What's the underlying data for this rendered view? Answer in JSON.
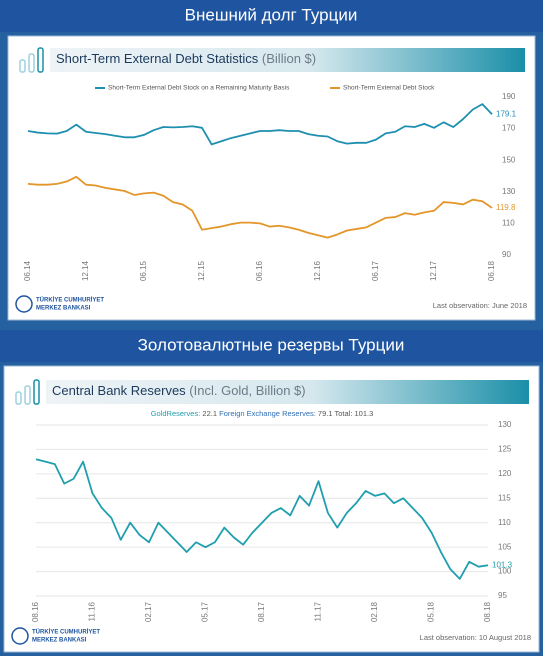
{
  "chart_data": [
    {
      "type": "line",
      "section_title": "Внешний долг Турции",
      "title": "Short-Term External Debt Statistics",
      "title_note": "(Billion $)",
      "categories": [
        "06.14",
        null,
        null,
        null,
        null,
        null,
        "12.14",
        null,
        null,
        null,
        null,
        null,
        "06.15",
        null,
        null,
        null,
        null,
        null,
        "12.15",
        null,
        null,
        null,
        null,
        null,
        "06.16",
        null,
        null,
        null,
        null,
        null,
        "12.16",
        null,
        null,
        null,
        null,
        null,
        "06.17",
        null,
        null,
        null,
        null,
        null,
        "12.17",
        null,
        null,
        null,
        null,
        null,
        "06.18"
      ],
      "series": [
        {
          "name": "Short-Term External Debt Stock on a Remaining Maturity Basis",
          "color": "#1f8fb0",
          "values": [
            168.5,
            167.5,
            167,
            166.8,
            168.5,
            172.5,
            168,
            167.2,
            166.5,
            165.5,
            164.5,
            164.5,
            166,
            169,
            171,
            170.8,
            171,
            171.5,
            170.5,
            160,
            162,
            164,
            165.5,
            167,
            168.5,
            168.5,
            169,
            168.5,
            168.5,
            166.5,
            165.5,
            165,
            162,
            160.5,
            161,
            161,
            163,
            167,
            168,
            171.5,
            171,
            173,
            170.5,
            174,
            171,
            176,
            182,
            185.5,
            179.1
          ]
        },
        {
          "name": "Short-Term External Debt Stock",
          "color": "#e3962a",
          "values": [
            135,
            134.5,
            134.5,
            135,
            136.5,
            139.5,
            134.5,
            134,
            132.5,
            131.5,
            130.5,
            128,
            129,
            129.5,
            127.5,
            123.5,
            122,
            118,
            106,
            107,
            108,
            109.5,
            110.5,
            110.5,
            110,
            108,
            108.5,
            107.5,
            106,
            104,
            102.5,
            101,
            103,
            105.5,
            106.5,
            107.5,
            110.5,
            113.5,
            114,
            116.5,
            115.5,
            117,
            118,
            123.5,
            123,
            122,
            125,
            124,
            119.8
          ]
        }
      ],
      "ylim": [
        90,
        190
      ],
      "yticks": [
        90,
        110,
        130,
        150,
        170,
        190
      ],
      "grid": false,
      "source": "Last observation: June 2018",
      "logo": [
        "TÜRKİYE CUMHURİYET",
        "MERKEZ BANKASI"
      ]
    },
    {
      "type": "line",
      "section_title": "Золотовалютные резервы Турции",
      "title": "Central Bank Reserves",
      "title_note": "(Incl. Gold, Billion $)",
      "summary": [
        {
          "label": "GoldReserves:",
          "value": 22.1,
          "color": "#1f9fae"
        },
        {
          "label": "Foreign Exchange Reserves:",
          "value": 79.1,
          "color": "#2f6fb5"
        },
        {
          "label": "Total:",
          "value": 101.3,
          "color": "#555555"
        }
      ],
      "categories": [
        "08.16",
        null,
        null,
        null,
        null,
        null,
        "11.16",
        null,
        null,
        null,
        null,
        null,
        "02.17",
        null,
        null,
        null,
        null,
        null,
        "05.17",
        null,
        null,
        null,
        null,
        null,
        "08.17",
        null,
        null,
        null,
        null,
        null,
        "11.17",
        null,
        null,
        null,
        null,
        null,
        "02.18",
        null,
        null,
        null,
        null,
        null,
        "05.18",
        null,
        null,
        null,
        null,
        null,
        "08.18"
      ],
      "series": [
        {
          "color": "#1f9fae",
          "values": [
            123,
            122.5,
            122,
            118,
            119,
            122.5,
            116,
            113,
            111,
            106.5,
            110,
            107.5,
            106,
            110,
            108,
            106,
            104,
            106,
            105,
            106,
            109,
            107,
            105.5,
            108,
            110,
            112,
            113,
            111.5,
            115.5,
            113.5,
            118.5,
            112,
            109,
            112,
            114,
            116.5,
            115.5,
            116,
            114,
            115,
            113,
            111,
            108,
            104,
            100.5,
            98.5,
            102,
            101,
            101.3
          ]
        }
      ],
      "ylim": [
        95,
        130
      ],
      "yticks": [
        95,
        100,
        105,
        110,
        115,
        120,
        125,
        130
      ],
      "grid": true,
      "source": "Last observation: 10 August 2018",
      "logo": [
        "TÜRKİYE CUMHURİYET",
        "MERKEZ BANKASI"
      ]
    }
  ]
}
